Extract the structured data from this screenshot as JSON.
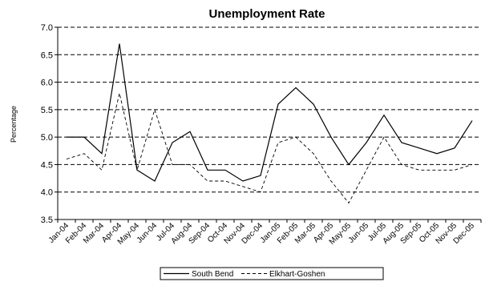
{
  "chart_data": {
    "type": "line",
    "title": "Unemployment Rate",
    "xlabel": "",
    "ylabel": "Percentage",
    "ylim": [
      3.5,
      7.0
    ],
    "yticks": [
      "3.5",
      "4.0",
      "4.5",
      "5.0",
      "5.5",
      "6.0",
      "6.5",
      "7.0"
    ],
    "grid": "horizontal dashed",
    "legend_position": "bottom",
    "categories": [
      "Jan-04",
      "Feb-04",
      "Mar-04",
      "Apr-04",
      "May-04",
      "Jun-04",
      "Jul-04",
      "Aug-04",
      "Sep-04",
      "Oct-04",
      "Nov-04",
      "Dec-04",
      "Jan-05",
      "Feb-05",
      "Mar-05",
      "Apr-05",
      "May-05",
      "Jun-05",
      "Jul-05",
      "Aug-05",
      "Sep-05",
      "Oct-05",
      "Nov-05",
      "Dec-05"
    ],
    "series": [
      {
        "name": "South Bend",
        "style": "solid",
        "values": [
          5.0,
          5.0,
          4.7,
          6.7,
          4.4,
          4.2,
          4.9,
          5.1,
          4.4,
          4.4,
          4.2,
          4.3,
          5.6,
          5.9,
          5.6,
          5.0,
          4.5,
          4.9,
          5.4,
          4.9,
          4.8,
          4.7,
          4.8,
          5.3
        ]
      },
      {
        "name": "Elkhart-Goshen",
        "style": "dashed",
        "values": [
          4.6,
          4.7,
          4.4,
          5.8,
          4.4,
          5.5,
          4.5,
          4.5,
          4.2,
          4.2,
          4.1,
          4.0,
          4.9,
          5.0,
          4.7,
          4.2,
          3.8,
          4.4,
          5.0,
          4.5,
          4.4,
          4.4,
          4.4,
          4.5
        ]
      }
    ]
  }
}
